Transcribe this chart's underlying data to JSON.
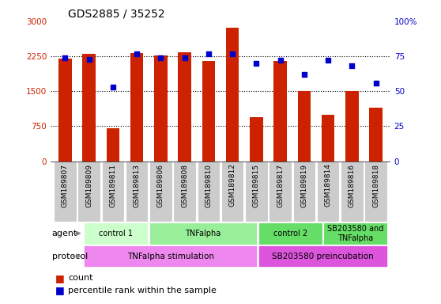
{
  "title": "GDS2885 / 35252",
  "samples": [
    "GSM189807",
    "GSM189809",
    "GSM189811",
    "GSM189813",
    "GSM189806",
    "GSM189808",
    "GSM189810",
    "GSM189812",
    "GSM189815",
    "GSM189817",
    "GSM189819",
    "GSM189814",
    "GSM189816",
    "GSM189818"
  ],
  "counts": [
    2200,
    2300,
    700,
    2320,
    2270,
    2340,
    2150,
    2870,
    950,
    2150,
    1500,
    1000,
    1500,
    1150
  ],
  "percentiles": [
    74,
    73,
    53,
    77,
    74,
    74,
    77,
    77,
    70,
    72,
    62,
    72,
    68,
    56
  ],
  "bar_color": "#cc2200",
  "dot_color": "#0000cc",
  "ylim_left": [
    0,
    3000
  ],
  "ylim_right": [
    0,
    100
  ],
  "yticks_left": [
    0,
    750,
    1500,
    2250,
    3000
  ],
  "yticks_right": [
    0,
    25,
    50,
    75,
    100
  ],
  "ytick_labels_left": [
    "0",
    "750",
    "1500",
    "2250",
    "3000"
  ],
  "ytick_labels_right": [
    "0",
    "25",
    "50",
    "75",
    "100%"
  ],
  "sample_bg_color": "#cccccc",
  "agent_groups": [
    {
      "label": "control 1",
      "start": 0,
      "end": 2,
      "color": "#ccffcc"
    },
    {
      "label": "TNFalpha",
      "start": 3,
      "end": 7,
      "color": "#99ee99"
    },
    {
      "label": "control 2",
      "start": 8,
      "end": 10,
      "color": "#66dd66"
    },
    {
      "label": "SB203580 and\nTNFalpha",
      "start": 11,
      "end": 13,
      "color": "#66dd66"
    }
  ],
  "protocol_groups": [
    {
      "label": "TNFalpha stimulation",
      "start": 0,
      "end": 7,
      "color": "#ee88ee"
    },
    {
      "label": "SB203580 preincubation",
      "start": 8,
      "end": 13,
      "color": "#dd55dd"
    }
  ],
  "agent_label": "agent",
  "protocol_label": "protocol",
  "legend_count_color": "#cc2200",
  "legend_dot_color": "#0000cc"
}
